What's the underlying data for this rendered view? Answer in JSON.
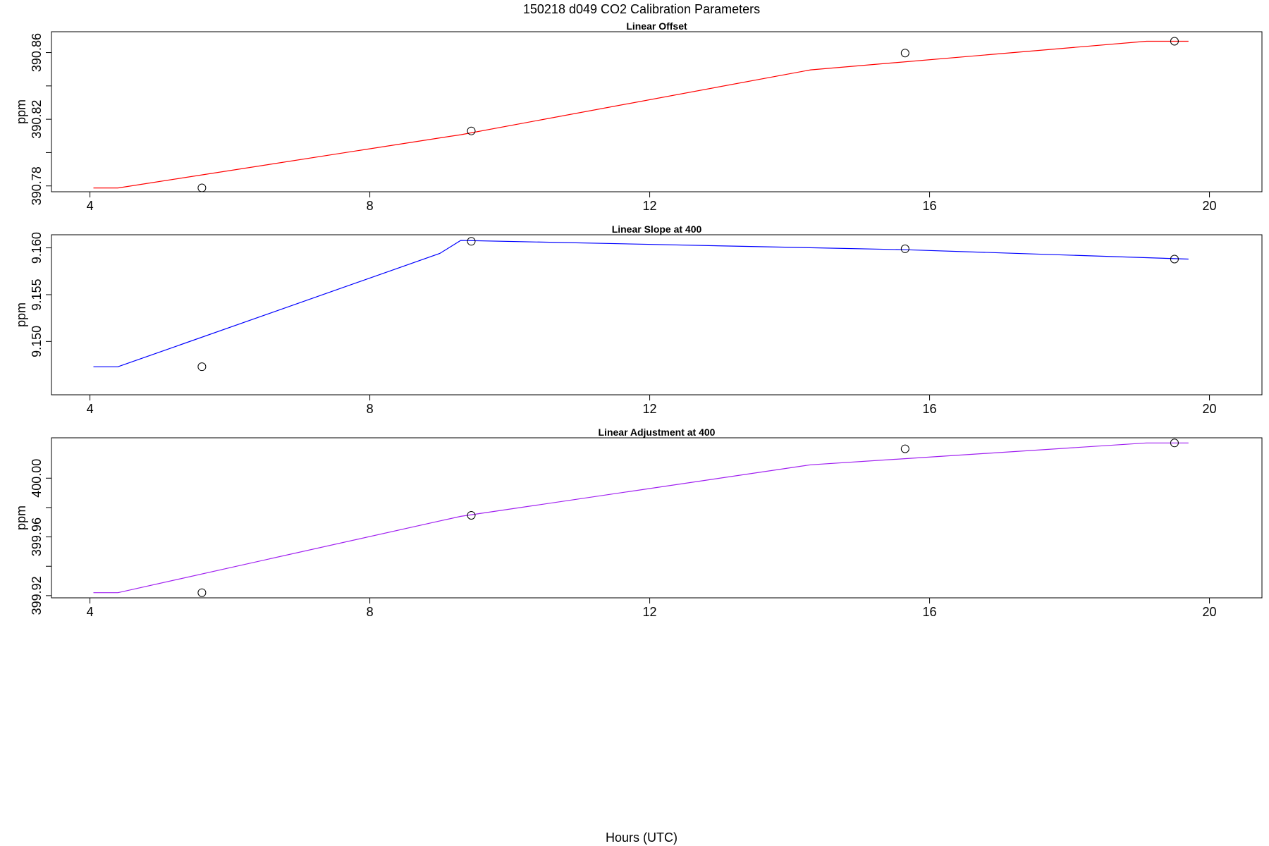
{
  "figure": {
    "title": "150218   d049   CO2 Calibration Parameters",
    "xlabel": "Hours (UTC)"
  },
  "colors": {
    "offset_line": "#ff0000",
    "slope_line": "#0000ff",
    "adjustment_line": "#a020f0",
    "points": "#000000",
    "frame": "#000000"
  },
  "chart_data": [
    {
      "type": "line",
      "title": "Linear Offset",
      "ylabel": "ppm",
      "xlabel": "",
      "xlim": [
        3.45,
        20.75
      ],
      "ylim": [
        390.7765,
        390.8725
      ],
      "xticks": [
        4,
        8,
        12,
        16,
        20
      ],
      "xtick_labels": [
        "4",
        "8",
        "12",
        "16",
        "20"
      ],
      "yticks": [
        390.78,
        390.8,
        390.82,
        390.84,
        390.86
      ],
      "ytick_labels": [
        "390.78",
        "",
        "390.82",
        "",
        "390.86"
      ],
      "grid": false,
      "series": [
        {
          "kind": "line",
          "x": [
            4.05,
            4.4,
            9.0,
            9.3,
            14.3,
            19.1,
            19.7
          ],
          "y": [
            390.7788,
            390.7788,
            390.8088,
            390.8107,
            390.8496,
            390.8668,
            390.8668
          ]
        },
        {
          "kind": "points",
          "x": [
            5.6,
            9.45,
            15.65,
            19.5
          ],
          "y": [
            390.7788,
            390.813,
            390.8597,
            390.8668
          ]
        }
      ]
    },
    {
      "type": "line",
      "title": "Linear Slope at 400",
      "ylabel": "ppm",
      "xlabel": "",
      "xlim": [
        3.45,
        20.75
      ],
      "ylim": [
        9.1443,
        9.1614
      ],
      "xticks": [
        4,
        8,
        12,
        16,
        20
      ],
      "xtick_labels": [
        "4",
        "8",
        "12",
        "16",
        "20"
      ],
      "yticks": [
        9.15,
        9.155,
        9.16
      ],
      "ytick_labels": [
        "9.150",
        "9.155",
        "9.160"
      ],
      "grid": false,
      "series": [
        {
          "kind": "line",
          "x": [
            4.05,
            4.4,
            9.0,
            9.3,
            15.65,
            19.7
          ],
          "y": [
            9.1473,
            9.1473,
            9.1594,
            9.1608,
            9.1598,
            9.1588
          ]
        },
        {
          "kind": "points",
          "x": [
            5.6,
            9.45,
            15.65,
            19.5
          ],
          "y": [
            9.1473,
            9.1607,
            9.1599,
            9.1588
          ]
        }
      ]
    },
    {
      "type": "line",
      "title": "Linear Adjustment at 400",
      "ylabel": "ppm",
      "xlabel": "",
      "xlim": [
        3.45,
        20.75
      ],
      "ylim": [
        399.9185,
        400.0275
      ],
      "xticks": [
        4,
        8,
        12,
        16,
        20
      ],
      "xtick_labels": [
        "4",
        "8",
        "12",
        "16",
        "20"
      ],
      "yticks": [
        399.92,
        399.94,
        399.96,
        399.98,
        400.0
      ],
      "ytick_labels": [
        "399.92",
        "",
        "399.96",
        "",
        "400.00"
      ],
      "grid": false,
      "series": [
        {
          "kind": "line",
          "x": [
            4.05,
            4.4,
            9.0,
            9.3,
            14.3,
            19.1,
            19.7
          ],
          "y": [
            399.922,
            399.922,
            399.9709,
            399.974,
            400.0091,
            400.024,
            400.024
          ]
        },
        {
          "kind": "points",
          "x": [
            5.6,
            9.45,
            15.65,
            19.5
          ],
          "y": [
            399.922,
            399.9747,
            400.02,
            400.024
          ]
        }
      ]
    }
  ]
}
